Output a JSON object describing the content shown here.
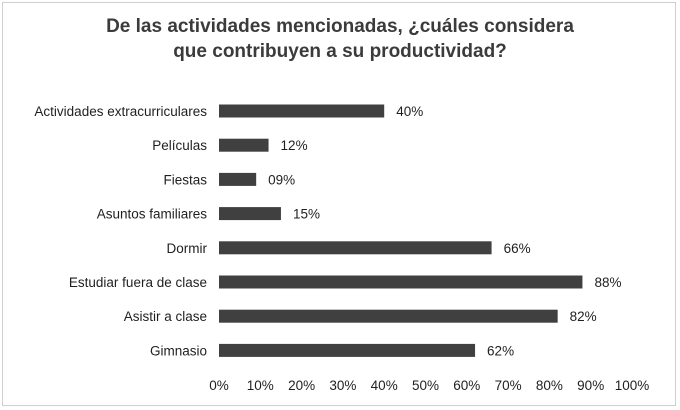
{
  "chart_data": {
    "type": "bar",
    "orientation": "horizontal",
    "title_lines": [
      "De las actividades mencionadas, ¿cuáles considera",
      "que contribuyen a su productividad?"
    ],
    "categories": [
      "Actividades extracurriculares",
      "Películas",
      "Fiestas",
      "Asuntos familiares",
      "Dormir",
      "Estudiar fuera de clase",
      "Asistir a clase",
      "Gimnasio"
    ],
    "values": [
      40,
      12,
      9,
      15,
      66,
      88,
      82,
      62
    ],
    "value_labels": [
      "40%",
      "12%",
      "09%",
      "15%",
      "66%",
      "88%",
      "82%",
      "62%"
    ],
    "x_ticks": [
      "0%",
      "10%",
      "20%",
      "30%",
      "40%",
      "50%",
      "60%",
      "70%",
      "80%",
      "90%",
      "100%"
    ],
    "xlim": [
      0,
      100
    ],
    "bar_color": "#404040",
    "grid": false,
    "legend": "none"
  }
}
